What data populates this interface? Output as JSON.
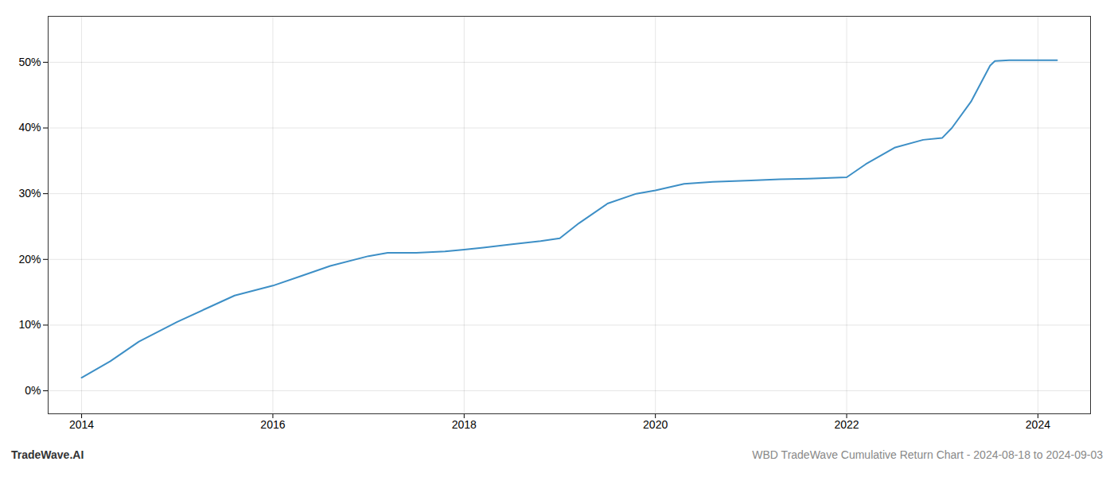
{
  "chart_data": {
    "type": "line",
    "x": [
      2014.0,
      2014.3,
      2014.6,
      2015.0,
      2015.3,
      2015.6,
      2016.0,
      2016.3,
      2016.6,
      2017.0,
      2017.2,
      2017.5,
      2017.8,
      2018.0,
      2018.2,
      2018.5,
      2018.8,
      2019.0,
      2019.2,
      2019.5,
      2019.8,
      2020.0,
      2020.3,
      2020.6,
      2021.0,
      2021.3,
      2021.6,
      2022.0,
      2022.2,
      2022.5,
      2022.8,
      2023.0,
      2023.1,
      2023.3,
      2023.5,
      2023.55,
      2023.7,
      2024.0,
      2024.2
    ],
    "values": [
      2.0,
      4.5,
      7.5,
      10.5,
      12.5,
      14.5,
      16.0,
      17.5,
      19.0,
      20.5,
      21.0,
      21.0,
      21.2,
      21.5,
      21.8,
      22.3,
      22.8,
      23.2,
      25.5,
      28.5,
      30.0,
      30.5,
      31.5,
      31.8,
      32.0,
      32.2,
      32.3,
      32.5,
      34.5,
      37.0,
      38.2,
      38.5,
      40.0,
      44.0,
      49.5,
      50.2,
      50.3,
      50.3,
      50.3
    ],
    "color": "#3d8fc6",
    "xlim": [
      2013.65,
      2024.55
    ],
    "ylim": [
      -3.5,
      57
    ],
    "xticks": [
      2014,
      2016,
      2018,
      2020,
      2022,
      2024
    ],
    "yticks": [
      {
        "value": 0,
        "label": "0%"
      },
      {
        "value": 10,
        "label": "10%"
      },
      {
        "value": 20,
        "label": "20%"
      },
      {
        "value": 30,
        "label": "30%"
      },
      {
        "value": 40,
        "label": "40%"
      },
      {
        "value": 50,
        "label": "50%"
      }
    ],
    "grid": true,
    "annotations": [
      "TradeWave.AI",
      "WBD TradeWave Cumulative Return Chart - 2024-08-18 to 2024-09-03"
    ]
  }
}
